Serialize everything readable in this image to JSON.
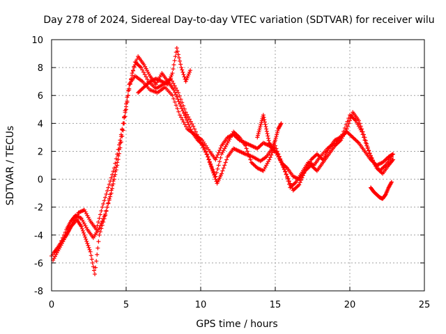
{
  "chart_data": {
    "type": "scatter",
    "title": "Day 278 of 2024, Sidereal Day-to-day VTEC variation (SDTVAR) for receiver wilu",
    "xlabel": "GPS time / hours",
    "ylabel": "SDTVAR / TECUs",
    "xlim": [
      0,
      25
    ],
    "ylim": [
      -8,
      10
    ],
    "x_ticks": [
      0,
      5,
      10,
      15,
      20,
      25
    ],
    "y_ticks": [
      -8,
      -6,
      -4,
      -2,
      0,
      2,
      4,
      6,
      8,
      10
    ],
    "grid": true,
    "marker": "+",
    "color": "#ff0000",
    "series": [
      {
        "name": "track-1",
        "x": [
          0.0,
          0.5,
          1.0,
          1.3,
          1.6,
          2.0,
          2.4,
          2.8,
          3.2,
          3.6,
          4.0,
          4.4,
          4.8,
          5.2,
          5.6,
          6.0,
          6.5,
          7.0,
          7.5,
          8.0,
          8.5,
          9.0,
          9.5,
          10.0,
          10.5,
          10.8,
          11.1,
          11.4,
          11.8,
          12.2,
          12.6,
          13.0,
          13.5,
          14.0,
          14.4,
          14.8,
          15.2,
          15.6,
          16.0,
          16.4,
          16.8,
          17.2,
          17.6,
          18.0,
          18.5,
          19.0,
          19.5,
          20.0,
          20.4,
          20.8,
          21.2,
          21.6,
          22.0,
          22.4,
          22.8
        ],
        "y": [
          -5.5,
          -4.8,
          -3.6,
          -3.0,
          -2.6,
          -2.8,
          -3.6,
          -4.2,
          -3.5,
          -2.5,
          -1.0,
          1.0,
          3.5,
          6.5,
          8.4,
          8.0,
          7.0,
          6.5,
          6.8,
          7.2,
          6.2,
          4.8,
          3.8,
          2.6,
          1.6,
          0.6,
          -0.3,
          0.4,
          1.6,
          2.2,
          2.0,
          1.8,
          1.6,
          1.3,
          1.6,
          2.2,
          1.8,
          0.8,
          -0.6,
          -0.2,
          0.5,
          1.2,
          1.0,
          1.6,
          2.2,
          2.6,
          3.2,
          4.6,
          4.2,
          3.4,
          2.2,
          1.2,
          0.6,
          1.0,
          1.6
        ]
      },
      {
        "name": "track-2",
        "x": [
          0.1,
          0.5,
          0.9,
          1.3,
          1.7,
          2.0,
          2.3,
          2.6,
          2.9,
          3.2,
          3.6,
          4.0,
          4.4,
          4.8,
          5.2,
          5.6,
          6.1,
          6.6,
          7.1,
          7.6,
          8.1,
          8.6,
          9.1,
          9.6,
          10.1,
          10.6,
          11.0,
          11.4,
          11.8,
          12.2,
          12.6,
          13.0,
          13.4,
          13.8,
          14.2,
          14.6,
          15.0,
          15.4,
          15.8,
          16.2,
          16.6,
          17.0,
          17.4,
          17.8,
          18.2,
          18.6,
          19.0,
          19.4,
          19.8,
          20.2,
          20.6,
          21.0,
          21.4,
          21.8,
          22.2,
          22.6,
          22.9
        ],
        "y": [
          -5.8,
          -5.0,
          -4.2,
          -3.4,
          -2.9,
          -3.4,
          -4.3,
          -5.2,
          -6.8,
          -4.0,
          -2.6,
          -0.8,
          1.2,
          4.0,
          6.8,
          7.4,
          7.0,
          6.4,
          6.2,
          6.6,
          6.0,
          4.6,
          3.6,
          3.2,
          2.8,
          2.0,
          1.4,
          2.4,
          3.0,
          3.2,
          2.8,
          2.6,
          2.4,
          2.2,
          2.6,
          2.4,
          2.0,
          1.2,
          0.8,
          0.2,
          0.0,
          0.6,
          1.4,
          1.8,
          1.4,
          2.2,
          2.8,
          3.0,
          3.4,
          3.0,
          2.6,
          2.0,
          1.4,
          1.0,
          1.2,
          1.6,
          1.8
        ]
      },
      {
        "name": "track-3",
        "x": [
          0.2,
          0.6,
          1.0,
          1.4,
          1.8,
          2.2,
          2.6,
          3.0,
          3.4,
          3.8,
          4.2,
          4.6,
          5.0,
          5.4,
          5.8,
          6.2,
          6.6,
          7.0,
          7.4,
          7.8,
          8.2,
          8.6,
          9.0,
          9.4,
          9.8,
          10.2,
          10.6,
          11.0,
          11.4,
          11.8,
          12.2,
          12.6,
          13.0,
          13.4,
          13.8,
          14.2,
          14.6,
          15.0,
          15.4,
          15.8,
          16.2,
          16.6,
          17.0,
          17.4,
          17.8,
          18.2,
          18.6,
          19.0,
          19.4,
          19.8,
          20.2,
          20.6,
          21.0,
          21.4,
          21.8,
          22.2,
          22.6,
          22.9
        ],
        "y": [
          -5.2,
          -4.6,
          -4.0,
          -3.2,
          -2.4,
          -2.2,
          -3.0,
          -3.6,
          -2.0,
          -0.6,
          0.8,
          2.8,
          5.2,
          7.6,
          8.8,
          8.2,
          7.4,
          6.8,
          7.6,
          7.0,
          6.4,
          5.4,
          4.4,
          3.4,
          2.8,
          2.4,
          1.2,
          0.2,
          1.8,
          2.6,
          3.4,
          3.0,
          2.4,
          1.2,
          0.8,
          0.6,
          1.4,
          2.4,
          1.2,
          0.2,
          -0.8,
          -0.4,
          0.6,
          1.0,
          0.6,
          1.2,
          1.8,
          2.4,
          2.8,
          3.6,
          4.8,
          4.2,
          3.0,
          1.6,
          0.8,
          0.4,
          1.0,
          1.4
        ]
      },
      {
        "name": "track-4",
        "x": [
          5.8,
          6.2,
          6.6,
          7.0,
          7.4,
          7.8,
          8.1,
          8.4,
          8.7,
          9.0,
          9.3
        ],
        "y": [
          6.2,
          6.6,
          7.0,
          7.2,
          7.0,
          6.8,
          7.6,
          9.4,
          8.0,
          7.0,
          7.8
        ]
      },
      {
        "name": "track-5",
        "x": [
          21.4,
          21.6,
          21.8,
          22.0,
          22.2,
          22.4,
          22.6,
          22.8
        ],
        "y": [
          -0.6,
          -0.9,
          -1.1,
          -1.3,
          -1.4,
          -1.1,
          -0.6,
          -0.2
        ]
      },
      {
        "name": "track-6",
        "x": [
          13.8,
          14.0,
          14.2,
          14.4,
          14.6,
          14.8,
          15.0,
          15.2,
          15.4
        ],
        "y": [
          3.0,
          3.8,
          4.6,
          3.6,
          2.6,
          2.2,
          2.8,
          3.6,
          4.0
        ]
      }
    ]
  }
}
